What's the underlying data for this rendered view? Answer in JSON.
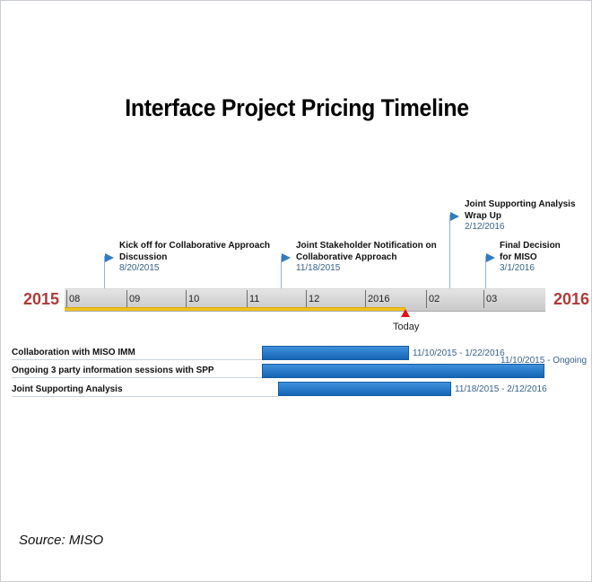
{
  "title": "Interface Project Pricing Timeline",
  "axis": {
    "start_year": "2015",
    "end_year": "2016",
    "ticks": [
      "08",
      "09",
      "10",
      "11",
      "12",
      "2016",
      "02",
      "03"
    ],
    "today_label": "Today",
    "progress_color": "#f0c21a",
    "today_color": "#e01515"
  },
  "milestones": [
    {
      "title_line1": "Kick off for Collaborative Approach",
      "title_line2": "Discussion",
      "date": "8/20/2015"
    },
    {
      "title_line1": "Joint Stakeholder Notification on",
      "title_line2": "Collaborative Approach",
      "date": "11/18/2015"
    },
    {
      "title_line1": "Joint Supporting Analysis",
      "title_line2": "Wrap Up",
      "date": "2/12/2016"
    },
    {
      "title_line1": "Final Decision",
      "title_line2": "for MISO",
      "date": "3/1/2016"
    }
  ],
  "tasks": [
    {
      "label": "Collaboration with MISO IMM",
      "range": "11/10/2015 - 1/22/2016"
    },
    {
      "label": "Ongoing 3 party information sessions with SPP",
      "range": "11/10/2015 - Ongoing"
    },
    {
      "label": "Joint Supporting Analysis",
      "range": "11/18/2015 - 2/12/2016"
    }
  ],
  "colors": {
    "bar": "#1f74c5",
    "year": "#b03a3a",
    "flag": "#2f7cc3"
  },
  "source": "Source: MISO"
}
